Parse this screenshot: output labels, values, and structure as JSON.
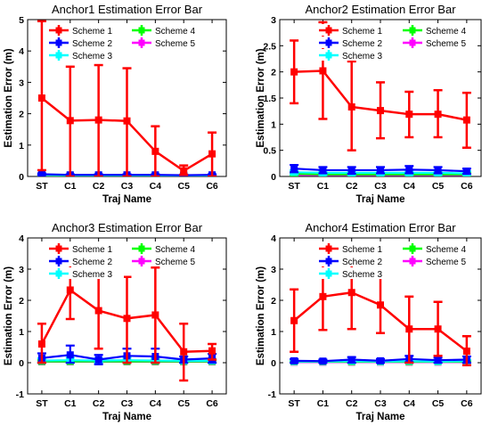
{
  "chart_data": [
    {
      "type": "line",
      "title": "Anchor1 Estimation Error Bar",
      "xlabel": "Traj Name",
      "ylabel": "Estimation Error (m)",
      "categories": [
        "ST",
        "C1",
        "C2",
        "C3",
        "C4",
        "C5",
        "C6"
      ],
      "ylim": [
        0,
        5
      ],
      "yticks": [
        0,
        1,
        2,
        3,
        4,
        5
      ],
      "series": [
        {
          "name": "Scheme 1",
          "color": "#ff0000",
          "values": [
            2.5,
            1.78,
            1.8,
            1.77,
            0.8,
            0.18,
            0.72
          ],
          "lower": [
            0.2,
            0.0,
            0.0,
            0.0,
            0.0,
            0.05,
            0.0
          ],
          "upper": [
            4.95,
            3.5,
            3.55,
            3.45,
            1.6,
            0.35,
            1.4
          ]
        },
        {
          "name": "Scheme 2",
          "color": "#0000ff",
          "values": [
            0.07,
            0.05,
            0.05,
            0.05,
            0.05,
            0.04,
            0.05
          ],
          "lower": [
            0.04,
            0.03,
            0.03,
            0.03,
            0.03,
            0.02,
            0.03
          ],
          "upper": [
            0.1,
            0.07,
            0.07,
            0.07,
            0.07,
            0.06,
            0.07
          ]
        },
        {
          "name": "Scheme 3",
          "color": "#00ffff",
          "values": [
            0.05,
            0.04,
            0.04,
            0.04,
            0.04,
            0.03,
            0.04
          ],
          "lower": [
            0.03,
            0.02,
            0.02,
            0.02,
            0.02,
            0.02,
            0.02
          ],
          "upper": [
            0.08,
            0.06,
            0.06,
            0.06,
            0.06,
            0.05,
            0.06
          ]
        },
        {
          "name": "Scheme 4",
          "color": "#00ff00",
          "values": [
            0.04,
            0.03,
            0.03,
            0.03,
            0.03,
            0.03,
            0.03
          ],
          "lower": [
            0.02,
            0.02,
            0.02,
            0.02,
            0.02,
            0.02,
            0.02
          ],
          "upper": [
            0.06,
            0.05,
            0.05,
            0.05,
            0.05,
            0.04,
            0.05
          ]
        },
        {
          "name": "Scheme 5",
          "color": "#ff00ff",
          "values": [
            0.03,
            0.02,
            0.02,
            0.02,
            0.02,
            0.02,
            0.02
          ],
          "lower": [
            0.02,
            0.01,
            0.01,
            0.01,
            0.01,
            0.01,
            0.01
          ],
          "upper": [
            0.05,
            0.04,
            0.04,
            0.04,
            0.04,
            0.03,
            0.04
          ]
        }
      ]
    },
    {
      "type": "line",
      "title": "Anchor2 Estimation Error Bar",
      "xlabel": "Traj Name",
      "ylabel": "Estimation Error (m)",
      "categories": [
        "ST",
        "C1",
        "C2",
        "C3",
        "C4",
        "C5",
        "C6"
      ],
      "ylim": [
        0,
        3
      ],
      "yticks": [
        0,
        0.5,
        1,
        1.5,
        2,
        2.5,
        3
      ],
      "series": [
        {
          "name": "Scheme 1",
          "color": "#ff0000",
          "values": [
            2.0,
            2.02,
            1.33,
            1.26,
            1.19,
            1.19,
            1.08
          ],
          "lower": [
            1.4,
            1.1,
            0.5,
            0.73,
            0.75,
            0.75,
            0.55
          ],
          "upper": [
            2.6,
            2.95,
            2.2,
            1.8,
            1.62,
            1.65,
            1.6
          ]
        },
        {
          "name": "Scheme 2",
          "color": "#0000ff",
          "values": [
            0.15,
            0.12,
            0.12,
            0.12,
            0.13,
            0.12,
            0.1
          ],
          "lower": [
            0.08,
            0.06,
            0.05,
            0.06,
            0.06,
            0.06,
            0.05
          ],
          "upper": [
            0.22,
            0.18,
            0.18,
            0.18,
            0.2,
            0.18,
            0.15
          ]
        },
        {
          "name": "Scheme 3",
          "color": "#00ffff",
          "values": [
            0.08,
            0.07,
            0.07,
            0.07,
            0.07,
            0.07,
            0.06
          ],
          "lower": [
            0.04,
            0.03,
            0.03,
            0.03,
            0.03,
            0.03,
            0.03
          ],
          "upper": [
            0.12,
            0.11,
            0.11,
            0.11,
            0.11,
            0.11,
            0.1
          ]
        },
        {
          "name": "Scheme 4",
          "color": "#00ff00",
          "values": [
            0.05,
            0.04,
            0.04,
            0.04,
            0.04,
            0.04,
            0.04
          ],
          "lower": [
            0.02,
            0.02,
            0.02,
            0.02,
            0.02,
            0.02,
            0.02
          ],
          "upper": [
            0.08,
            0.07,
            0.07,
            0.07,
            0.07,
            0.07,
            0.07
          ]
        },
        {
          "name": "Scheme 5",
          "color": "#ff00ff",
          "values": [
            0.03,
            0.03,
            0.03,
            0.03,
            0.03,
            0.03,
            0.03
          ],
          "lower": [
            0.01,
            0.01,
            0.01,
            0.01,
            0.01,
            0.01,
            0.01
          ],
          "upper": [
            0.06,
            0.05,
            0.05,
            0.05,
            0.05,
            0.05,
            0.05
          ]
        }
      ]
    },
    {
      "type": "line",
      "title": "Anchor3 Estimation Error Bar",
      "xlabel": "Traj Name",
      "ylabel": "Estimation Error (m)",
      "categories": [
        "ST",
        "C1",
        "C2",
        "C3",
        "C4",
        "C5",
        "C6"
      ],
      "ylim": [
        -1,
        4
      ],
      "yticks": [
        -1,
        0,
        1,
        2,
        3,
        4
      ],
      "series": [
        {
          "name": "Scheme 1",
          "color": "#ff0000",
          "values": [
            0.6,
            2.33,
            1.67,
            1.42,
            1.53,
            0.35,
            0.38
          ],
          "lower": [
            0.0,
            1.4,
            0.45,
            0.0,
            0.0,
            -0.57,
            0.1
          ],
          "upper": [
            1.25,
            3.3,
            2.9,
            2.75,
            3.05,
            1.25,
            0.6
          ]
        },
        {
          "name": "Scheme 2",
          "color": "#0000ff",
          "values": [
            0.15,
            0.25,
            0.1,
            0.22,
            0.2,
            0.1,
            0.14
          ],
          "lower": [
            0.0,
            0.0,
            -0.05,
            0.0,
            0.0,
            0.0,
            0.0
          ],
          "upper": [
            0.3,
            0.55,
            0.25,
            0.45,
            0.45,
            0.2,
            0.28
          ]
        },
        {
          "name": "Scheme 3",
          "color": "#00ffff",
          "values": [
            0.07,
            0.08,
            0.07,
            0.08,
            0.07,
            0.06,
            0.06
          ],
          "lower": [
            0.0,
            0.0,
            0.0,
            0.0,
            0.0,
            0.0,
            0.0
          ],
          "upper": [
            0.14,
            0.16,
            0.14,
            0.16,
            0.14,
            0.12,
            0.12
          ]
        },
        {
          "name": "Scheme 4",
          "color": "#00ff00",
          "values": [
            0.04,
            0.04,
            0.04,
            0.04,
            0.04,
            0.04,
            0.04
          ],
          "lower": [
            0.0,
            0.0,
            0.0,
            0.0,
            0.0,
            0.0,
            0.0
          ],
          "upper": [
            0.08,
            0.08,
            0.08,
            0.08,
            0.08,
            0.08,
            0.08
          ]
        },
        {
          "name": "Scheme 5",
          "color": "#ff00ff",
          "values": [
            0.03,
            0.03,
            0.03,
            0.03,
            0.03,
            0.03,
            0.03
          ],
          "lower": [
            0.0,
            0.0,
            0.0,
            0.0,
            0.0,
            0.0,
            0.0
          ],
          "upper": [
            0.06,
            0.06,
            0.06,
            0.06,
            0.06,
            0.06,
            0.06
          ]
        }
      ]
    },
    {
      "type": "line",
      "title": "Anchor4 Estimation Error Bar",
      "xlabel": "Traj Name",
      "ylabel": "Estimation Error (m)",
      "categories": [
        "ST",
        "C1",
        "C2",
        "C3",
        "C4",
        "C5",
        "C6"
      ],
      "ylim": [
        -1,
        4
      ],
      "yticks": [
        -1,
        0,
        1,
        2,
        3,
        4
      ],
      "series": [
        {
          "name": "Scheme 1",
          "color": "#ff0000",
          "values": [
            1.35,
            2.12,
            2.25,
            1.85,
            1.08,
            1.08,
            0.37
          ],
          "lower": [
            0.35,
            1.05,
            1.08,
            0.95,
            0.0,
            0.22,
            -0.08
          ],
          "upper": [
            2.35,
            3.18,
            3.42,
            2.75,
            2.12,
            1.95,
            0.85
          ]
        },
        {
          "name": "Scheme 2",
          "color": "#0000ff",
          "values": [
            0.06,
            0.05,
            0.1,
            0.06,
            0.12,
            0.08,
            0.1
          ],
          "lower": [
            0.0,
            0.0,
            0.0,
            0.0,
            0.02,
            0.0,
            0.0
          ],
          "upper": [
            0.12,
            0.1,
            0.18,
            0.12,
            0.22,
            0.16,
            0.2
          ]
        },
        {
          "name": "Scheme 3",
          "color": "#00ffff",
          "values": [
            0.04,
            0.04,
            0.05,
            0.04,
            0.05,
            0.04,
            0.05
          ],
          "lower": [
            0.0,
            0.0,
            0.0,
            0.0,
            0.0,
            0.0,
            0.0
          ],
          "upper": [
            0.08,
            0.08,
            0.1,
            0.08,
            0.1,
            0.08,
            0.1
          ]
        },
        {
          "name": "Scheme 4",
          "color": "#00ff00",
          "values": [
            0.03,
            0.03,
            0.03,
            0.03,
            0.03,
            0.03,
            0.03
          ],
          "lower": [
            0.0,
            0.0,
            0.0,
            0.0,
            0.0,
            0.0,
            0.0
          ],
          "upper": [
            0.06,
            0.06,
            0.06,
            0.06,
            0.06,
            0.06,
            0.06
          ]
        },
        {
          "name": "Scheme 5",
          "color": "#ff00ff",
          "values": [
            0.02,
            0.02,
            0.02,
            0.02,
            0.02,
            0.02,
            0.02
          ],
          "lower": [
            0.0,
            0.0,
            0.0,
            0.0,
            0.0,
            0.0,
            0.0
          ],
          "upper": [
            0.05,
            0.05,
            0.05,
            0.05,
            0.05,
            0.05,
            0.05
          ]
        }
      ]
    }
  ]
}
